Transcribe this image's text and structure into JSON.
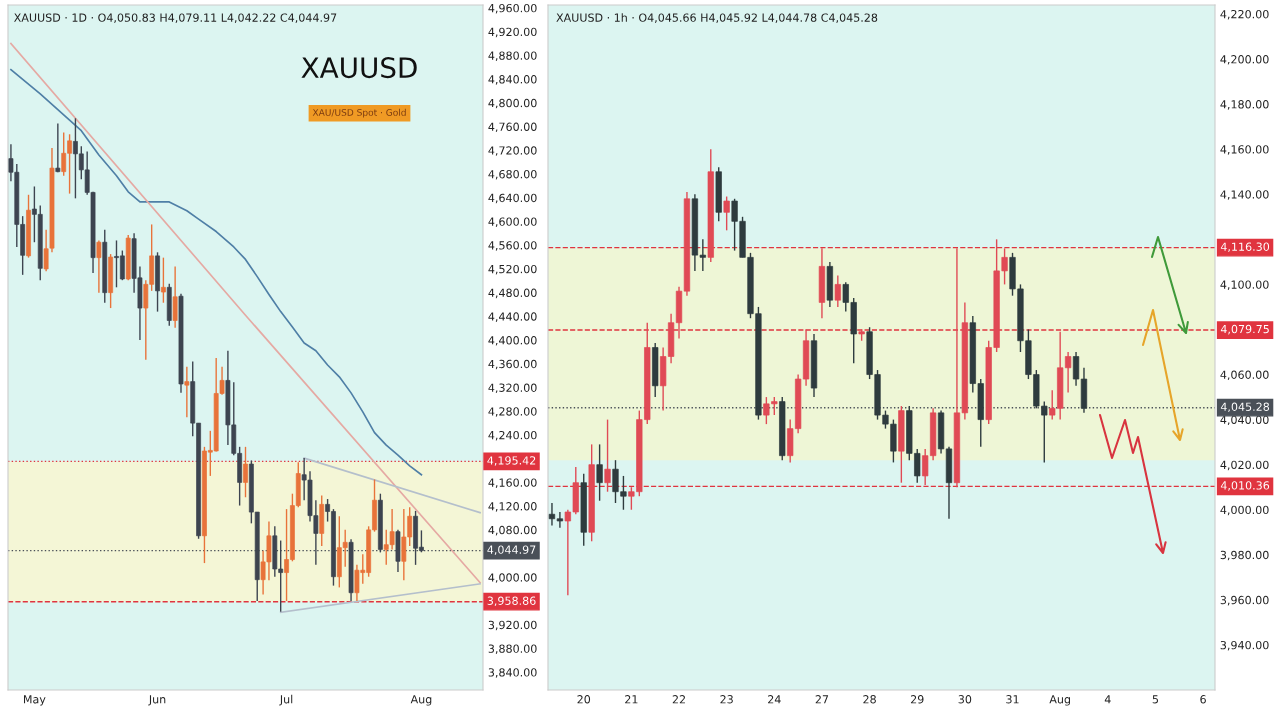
{
  "chart_data": [
    {
      "type": "candlestick",
      "title": "XAUUSD · 1D · O4,050.83 H4,079.11 L4,042.22 C4,044.97",
      "annotations": [
        "XAUUSD",
        "XAU/USD Spot · Gold"
      ],
      "categories": [
        null,
        null,
        null,
        null,
        "May",
        null,
        null,
        null,
        null,
        null,
        null,
        null,
        null,
        null,
        null,
        null,
        null,
        null,
        null,
        null,
        null,
        null,
        null,
        null,
        null,
        "Jun",
        null,
        null,
        null,
        null,
        null,
        null,
        null,
        null,
        null,
        null,
        null,
        null,
        null,
        null,
        null,
        null,
        null,
        null,
        null,
        null,
        null,
        "Jul",
        null,
        null,
        null,
        null,
        null,
        null,
        null,
        null,
        null,
        null,
        null,
        null,
        null,
        null,
        null,
        null,
        null,
        null,
        null,
        null,
        null,
        null,
        "Aug",
        null,
        null,
        null,
        null,
        null,
        null,
        null,
        null,
        null,
        null
      ],
      "ylim": [
        3810,
        4965
      ],
      "yticks": [
        {
          "value": 3840,
          "label": "3,840.00"
        },
        {
          "value": 3880,
          "label": "3,880.00"
        },
        {
          "value": 3920,
          "label": "3,920.00"
        },
        {
          "value": 4000,
          "label": "4,000.00"
        },
        {
          "value": 4080,
          "label": "4,080.00"
        },
        {
          "value": 4120,
          "label": "4,120.00"
        },
        {
          "value": 4160,
          "label": "4,160.00"
        },
        {
          "value": 4240,
          "label": "4,240.00"
        },
        {
          "value": 4280,
          "label": "4,280.00"
        },
        {
          "value": 4320,
          "label": "4,320.00"
        },
        {
          "value": 4360,
          "label": "4,360.00"
        },
        {
          "value": 4400,
          "label": "4,400.00"
        },
        {
          "value": 4440,
          "label": "4,440.00"
        },
        {
          "value": 4480,
          "label": "4,480.00"
        },
        {
          "value": 4520,
          "label": "4,520.00"
        },
        {
          "value": 4560,
          "label": "4,560.00"
        },
        {
          "value": 4600,
          "label": "4,600.00"
        },
        {
          "value": 4640,
          "label": "4,640.00"
        },
        {
          "value": 4680,
          "label": "4,680.00"
        },
        {
          "value": 4720,
          "label": "4,720.00"
        },
        {
          "value": 4760,
          "label": "4,760.00"
        },
        {
          "value": 4800,
          "label": "4,800.00"
        },
        {
          "value": 4840,
          "label": "4,840.00"
        },
        {
          "value": 4880,
          "label": "4,880.00"
        },
        {
          "value": 4920,
          "label": "4,920.00"
        },
        {
          "value": 4960,
          "label": "4,960.00"
        }
      ],
      "series": [
        {
          "ohlc": [
            [
              4706,
              4730,
              4668,
              4683
            ],
            [
              4683,
              4697,
              4557,
              4595
            ],
            [
              4595,
              4609,
              4510,
              4543
            ],
            [
              4542,
              4645,
              4539,
              4619
            ],
            [
              4621,
              4659,
              4565,
              4612
            ],
            [
              4612,
              4627,
              4501,
              4521
            ],
            [
              4520,
              4586,
              4516,
              4554
            ],
            [
              4555,
              4724,
              4548,
              4690
            ],
            [
              4690,
              4765,
              4683,
              4684
            ],
            [
              4684,
              4750,
              4677,
              4715
            ],
            [
              4715,
              4747,
              4647,
              4736
            ],
            [
              4735,
              4774,
              4639,
              4714
            ],
            [
              4714,
              4727,
              4671,
              4687
            ],
            [
              4687,
              4718,
              4645,
              4649
            ],
            [
              4649,
              4650,
              4513,
              4539
            ],
            [
              4539,
              4568,
              4480,
              4565
            ],
            [
              4565,
              4586,
              4463,
              4480
            ],
            [
              4480,
              4545,
              4454,
              4540
            ],
            [
              4541,
              4568,
              4489,
              4539
            ],
            [
              4542,
              4551,
              4501,
              4503
            ],
            [
              4503,
              4577,
              4501,
              4572
            ],
            [
              4571,
              4580,
              4480,
              4504
            ],
            [
              4505,
              4524,
              4400,
              4454
            ],
            [
              4454,
              4501,
              4367,
              4494
            ],
            [
              4494,
              4595,
              4483,
              4542
            ],
            [
              4542,
              4548,
              4448,
              4483
            ],
            [
              4481,
              4539,
              4463,
              4489
            ],
            [
              4489,
              4495,
              4424,
              4433
            ],
            [
              4433,
              4524,
              4421,
              4473
            ],
            [
              4474,
              4478,
              4311,
              4326
            ],
            [
              4324,
              4355,
              4270,
              4330
            ],
            [
              4330,
              4364,
              4238,
              4260
            ],
            [
              4260,
              4260,
              4065,
              4070
            ],
            [
              4070,
              4220,
              4024,
              4213
            ],
            [
              4211,
              4247,
              4171,
              4214
            ],
            [
              4213,
              4370,
              4212,
              4310
            ],
            [
              4310,
              4355,
              4308,
              4332
            ],
            [
              4332,
              4382,
              4223,
              4257
            ],
            [
              4257,
              4329,
              4206,
              4209
            ],
            [
              4209,
              4220,
              4121,
              4160
            ],
            [
              4160,
              4220,
              4135,
              4191
            ],
            [
              4191,
              4197,
              4091,
              4110
            ],
            [
              4110,
              4110,
              3960,
              3996
            ],
            [
              3996,
              4045,
              3971,
              4026
            ],
            [
              4026,
              4094,
              3995,
              4070
            ],
            [
              4070,
              4086,
              4001,
              4014
            ],
            [
              4014,
              4062,
              3942,
              4008
            ],
            [
              4008,
              4115,
              3960,
              4030
            ],
            [
              4030,
              4141,
              4027,
              4121
            ],
            [
              4121,
              4194,
              4118,
              4175
            ],
            [
              4173,
              4201,
              4130,
              4164
            ],
            [
              4164,
              4179,
              4094,
              4104
            ],
            [
              4104,
              4130,
              4021,
              4074
            ],
            [
              4074,
              4138,
              4053,
              4123
            ],
            [
              4123,
              4132,
              4094,
              4111
            ],
            [
              4111,
              4115,
              3986,
              4001
            ],
            [
              4001,
              4103,
              3983,
              4050
            ],
            [
              4050,
              4080,
              4018,
              4059
            ],
            [
              4059,
              4064,
              3960,
              3974
            ],
            [
              3974,
              4021,
              3960,
              4012
            ],
            [
              4008,
              4039,
              3989,
              4012
            ],
            [
              4008,
              4086,
              4001,
              4080
            ],
            [
              4080,
              4165,
              4077,
              4130
            ],
            [
              4130,
              4141,
              4042,
              4047
            ],
            [
              4047,
              4080,
              4021,
              4055
            ],
            [
              4055,
              4115,
              4047,
              4077
            ],
            [
              4077,
              4080,
              4009,
              4027
            ],
            [
              4027,
              4115,
              3995,
              4068
            ],
            [
              4068,
              4118,
              4053,
              4103
            ],
            [
              4103,
              4112,
              4021,
              4049
            ],
            [
              4050.83,
              4079.11,
              4042.22,
              4044.97
            ],
            null,
            null,
            null,
            null,
            null,
            null,
            null,
            null,
            null,
            null
          ],
          "colors": [
            "#3d4450",
            "#3d4450",
            "#3d4450",
            "#e8733a",
            "#3d4450",
            "#3d4450",
            "#e8733a",
            "#e8733a",
            "#3d4450",
            "#e8733a",
            "#e8733a",
            "#3d4450",
            "#3d4450",
            "#3d4450",
            "#3d4450",
            "#e8733a",
            "#3d4450",
            "#e8733a",
            "#3d4450",
            "#3d4450",
            "#e8733a",
            "#3d4450",
            "#3d4450",
            "#e8733a",
            "#e8733a",
            "#3d4450",
            "#e8733a",
            "#3d4450",
            "#e8733a",
            "#3d4450",
            "#e8733a",
            "#3d4450",
            "#3d4450",
            "#e8733a",
            "#e8733a",
            "#e8733a",
            "#e8733a",
            "#3d4450",
            "#3d4450",
            "#3d4450",
            "#e8733a",
            "#3d4450",
            "#3d4450",
            "#e8733a",
            "#e8733a",
            "#3d4450",
            "#3d4450",
            "#e8733a",
            "#e8733a",
            "#e8733a",
            "#3d4450",
            "#3d4450",
            "#3d4450",
            "#e8733a",
            "#3d4450",
            "#3d4450",
            "#e8733a",
            "#e8733a",
            "#3d4450",
            "#e8733a",
            "#e8733a",
            "#e8733a",
            "#e8733a",
            "#3d4450",
            "#e8733a",
            "#e8733a",
            "#3d4450",
            "#e8733a",
            "#e8733a",
            "#3d4450",
            "#3d4450",
            null,
            null,
            null,
            null,
            null,
            null,
            null,
            null,
            null,
            null
          ]
        },
        {
          "type": "line",
          "color": "#4f7fa6",
          "values": [
            4856,
            null,
            null,
            null,
            null,
            4815,
            null,
            null,
            null,
            null,
            4771,
            null,
            4753,
            null,
            null,
            4712,
            null,
            null,
            4677,
            null,
            4650,
            null,
            4633,
            null,
            null,
            4633,
            null,
            4633,
            null,
            null,
            4618,
            null,
            4604,
            null,
            null,
            4583,
            null,
            null,
            4557,
            null,
            4536,
            null,
            4507,
            null,
            4477,
            null,
            4448,
            null,
            4422,
            null,
            4395,
            null,
            4382,
            null,
            4358,
            null,
            4338,
            null,
            4311,
            null,
            4279,
            null,
            4244,
            null,
            4223,
            null,
            4206,
            null,
            4188,
            null,
            4173,
            null,
            null,
            null,
            null,
            null,
            null,
            null,
            null,
            null,
            null
          ]
        },
        {
          "type": "line",
          "color": "#e5a9a3",
          "values": [
            4900,
            null,
            null,
            null,
            null,
            null,
            null,
            null,
            null,
            null,
            null,
            null,
            null,
            null,
            null,
            null,
            null,
            null,
            null,
            null,
            null,
            null,
            null,
            null,
            null,
            null,
            null,
            null,
            null,
            null,
            null,
            null,
            null,
            null,
            null,
            null,
            null,
            null,
            null,
            null,
            4442,
            null,
            null,
            null,
            null,
            null,
            null,
            null,
            null,
            null,
            null,
            null,
            null,
            null,
            null,
            null,
            null,
            null,
            null,
            null,
            null,
            null,
            null,
            null,
            null,
            null,
            null,
            null,
            null,
            null,
            null,
            null,
            null,
            null,
            null,
            null,
            null,
            null,
            null,
            null,
            3991
          ]
        },
        {
          "type": "line",
          "color": "#b4bfcc",
          "values": [
            null,
            null,
            null,
            null,
            null,
            null,
            null,
            null,
            null,
            null,
            null,
            null,
            null,
            null,
            null,
            null,
            null,
            null,
            null,
            null,
            null,
            null,
            null,
            null,
            null,
            null,
            null,
            null,
            null,
            null,
            null,
            null,
            null,
            null,
            null,
            null,
            null,
            null,
            null,
            null,
            null,
            null,
            null,
            null,
            null,
            null,
            null,
            null,
            null,
            null,
            4201,
            null,
            null,
            null,
            null,
            null,
            null,
            null,
            null,
            null,
            null,
            null,
            null,
            null,
            null,
            null,
            null,
            null,
            null,
            null,
            null,
            null,
            null,
            null,
            null,
            null,
            null,
            null,
            null,
            null,
            4109
          ]
        },
        {
          "type": "line",
          "color": "#b4bfcc",
          "values": [
            null,
            null,
            null,
            null,
            null,
            null,
            null,
            null,
            null,
            null,
            null,
            null,
            null,
            null,
            null,
            null,
            null,
            null,
            null,
            null,
            null,
            null,
            null,
            null,
            null,
            null,
            null,
            null,
            null,
            null,
            null,
            null,
            null,
            null,
            null,
            null,
            null,
            null,
            null,
            null,
            null,
            null,
            null,
            null,
            null,
            null,
            3941,
            null,
            null,
            null,
            null,
            null,
            null,
            null,
            null,
            null,
            null,
            null,
            null,
            null,
            null,
            null,
            null,
            null,
            null,
            null,
            null,
            null,
            null,
            null,
            null,
            null,
            null,
            null,
            null,
            null,
            null,
            null,
            null,
            null,
            3989
          ]
        }
      ],
      "bands": [
        {
          "axis": "y",
          "from": 3958.86,
          "to": 4195.42,
          "color": "#f4f6d6"
        }
      ],
      "ref_lines": [
        {
          "axis": "y",
          "value": 4195.42,
          "label": "4,195.42",
          "color": "#e0343f",
          "line_style": "dotted"
        },
        {
          "axis": "y",
          "value": 4044.97,
          "label": "4,044.97",
          "color": "#4a5058",
          "line_style": "dotted"
        },
        {
          "axis": "y",
          "value": 3958.86,
          "label": "3,958.86",
          "color": "#e0343f",
          "line_style": "dashed"
        }
      ],
      "grid": false
    },
    {
      "type": "candlestick",
      "title": "XAUUSD · 1h · O4,045.66 H4,045.92 L4,044.78 C4,045.28",
      "categories": [
        null,
        null,
        null,
        null,
        "20",
        null,
        null,
        null,
        null,
        null,
        "21",
        null,
        null,
        null,
        null,
        null,
        "22",
        null,
        null,
        null,
        null,
        null,
        "23",
        null,
        null,
        null,
        null,
        null,
        "24",
        null,
        null,
        null,
        null,
        null,
        "27",
        null,
        null,
        null,
        null,
        null,
        "28",
        null,
        null,
        null,
        null,
        null,
        "29",
        null,
        null,
        null,
        null,
        null,
        "30",
        null,
        null,
        null,
        null,
        null,
        "31",
        null,
        null,
        null,
        null,
        null,
        "Aug",
        null,
        null,
        null,
        null,
        null,
        "4",
        null,
        null,
        null,
        null,
        null,
        "5",
        null,
        null,
        null,
        null,
        null,
        "6",
        null
      ],
      "ylim": [
        3920,
        4224
      ],
      "yticks": [
        {
          "value": 3940,
          "label": "3,940.00"
        },
        {
          "value": 3960,
          "label": "3,960.00"
        },
        {
          "value": 3980,
          "label": "3,980.00"
        },
        {
          "value": 4000,
          "label": "4,000.00"
        },
        {
          "value": 4020,
          "label": "4,020.00"
        },
        {
          "value": 4040,
          "label": "4,040.00"
        },
        {
          "value": 4060,
          "label": "4,060.00"
        },
        {
          "value": 4100,
          "label": "4,100.00"
        },
        {
          "value": 4140,
          "label": "4,140.00"
        },
        {
          "value": 4160,
          "label": "4,160.00"
        },
        {
          "value": 4180,
          "label": "4,180.00"
        },
        {
          "value": 4200,
          "label": "4,200.00"
        },
        {
          "value": 4220,
          "label": "4,220.00"
        }
      ],
      "series": [
        {
          "ohlc": [
            [
              3998,
              4003,
              3993,
              3996
            ],
            [
              3996,
              3999,
              3992,
              3995
            ],
            [
              3995,
              4000,
              3962,
              3999
            ],
            [
              3999,
              4019,
              3998,
              4012
            ],
            [
              4012,
              4016,
              3984,
              3990
            ],
            [
              3990,
              4029,
              3986,
              4020
            ],
            [
              4020,
              4029,
              4004,
              4012
            ],
            [
              4012,
              4040,
              4008,
              4018
            ],
            [
              4018,
              4022,
              4003,
              4008
            ],
            [
              4008,
              4015,
              4000,
              4006
            ],
            [
              4006,
              4010,
              4000,
              4008
            ],
            [
              4008,
              4044,
              4006,
              4040
            ],
            [
              4040,
              4083,
              4038,
              4072
            ],
            [
              4072,
              4074,
              4050,
              4055
            ],
            [
              4055,
              4072,
              4044,
              4068
            ],
            [
              4068,
              4087,
              4065,
              4083
            ],
            [
              4083,
              4099,
              4076,
              4097
            ],
            [
              4097,
              4141,
              4095,
              4138
            ],
            [
              4138,
              4140,
              4106,
              4113
            ],
            [
              4113,
              4120,
              4106,
              4112
            ],
            [
              4112,
              4160,
              4110,
              4150
            ],
            [
              4150,
              4152,
              4128,
              4132
            ],
            [
              4132,
              4139,
              4124,
              4137
            ],
            [
              4137,
              4138,
              4115,
              4128
            ],
            [
              4128,
              4130,
              4112,
              4112
            ],
            [
              4112,
              4114,
              4085,
              4087
            ],
            [
              4087,
              4090,
              4040,
              4042
            ],
            [
              4042,
              4050,
              4038,
              4047
            ],
            [
              4047,
              4050,
              4042,
              4048
            ],
            [
              4048,
              4050,
              4022,
              4024
            ],
            [
              4024,
              4040,
              4021,
              4036
            ],
            [
              4036,
              4060,
              4034,
              4058
            ],
            [
              4058,
              4080,
              4055,
              4075
            ],
            [
              4075,
              4078,
              4050,
              4054
            ],
            [
              4092,
              4116,
              4085,
              4108
            ],
            [
              4108,
              4110,
              4090,
              4093
            ],
            [
              4093,
              4104,
              4090,
              4100
            ],
            [
              4100,
              4101,
              4088,
              4092
            ],
            [
              4092,
              4094,
              4065,
              4078
            ],
            [
              4078,
              4080,
              4075,
              4079
            ],
            [
              4079,
              4081,
              4058,
              4060
            ],
            [
              4060,
              4062,
              4040,
              4042
            ],
            [
              4042,
              4044,
              4036,
              4038
            ],
            [
              4038,
              4040,
              4021,
              4026
            ],
            [
              4026,
              4046,
              4012,
              4044
            ],
            [
              4044,
              4046,
              4022,
              4025
            ],
            [
              4025,
              4027,
              4012,
              4015
            ],
            [
              4015,
              4027,
              4011,
              4024
            ],
            [
              4024,
              4045,
              4022,
              4043
            ],
            [
              4043,
              4044,
              4025,
              4027
            ],
            [
              4027,
              4028,
              3996,
              4012
            ],
            [
              4012,
              4116,
              4010,
              4043
            ],
            [
              4043,
              4092,
              4040,
              4083
            ],
            [
              4083,
              4086,
              4052,
              4056
            ],
            [
              4056,
              4058,
              4028,
              4040
            ],
            [
              4040,
              4075,
              4038,
              4072
            ],
            [
              4072,
              4120,
              4070,
              4106
            ],
            [
              4106,
              4116,
              4100,
              4112
            ],
            [
              4112,
              4114,
              4095,
              4098
            ],
            [
              4098,
              4100,
              4070,
              4075
            ],
            [
              4075,
              4080,
              4058,
              4060
            ],
            [
              4060,
              4062,
              4045,
              4046
            ],
            [
              4046,
              4048,
              4021,
              4042
            ],
            [
              4042,
              4053,
              4040,
              4045
            ],
            [
              4045,
              4079,
              4040,
              4063
            ],
            [
              4063,
              4070,
              4052,
              4068
            ],
            [
              4068,
              4070,
              4055,
              4058
            ],
            [
              4058,
              4063,
              4043,
              4045
            ],
            null,
            null,
            null,
            null,
            null,
            null,
            null,
            null,
            null,
            null,
            null,
            null,
            null,
            null,
            null,
            null
          ],
          "colors": [
            "#2e3b3e",
            "#2e3b3e",
            "#e04a55",
            "#e04a55",
            "#2e3b3e",
            "#e04a55",
            "#2e3b3e",
            "#e04a55",
            "#2e3b3e",
            "#2e3b3e",
            "#e04a55",
            "#e04a55",
            "#e04a55",
            "#2e3b3e",
            "#e04a55",
            "#e04a55",
            "#e04a55",
            "#e04a55",
            "#2e3b3e",
            "#2e3b3e",
            "#e04a55",
            "#2e3b3e",
            "#e04a55",
            "#2e3b3e",
            "#2e3b3e",
            "#2e3b3e",
            "#2e3b3e",
            "#e04a55",
            "#e04a55",
            "#2e3b3e",
            "#e04a55",
            "#e04a55",
            "#e04a55",
            "#2e3b3e",
            "#e04a55",
            "#2e3b3e",
            "#e04a55",
            "#2e3b3e",
            "#2e3b3e",
            "#e04a55",
            "#2e3b3e",
            "#2e3b3e",
            "#2e3b3e",
            "#2e3b3e",
            "#e04a55",
            "#2e3b3e",
            "#2e3b3e",
            "#e04a55",
            "#e04a55",
            "#2e3b3e",
            "#2e3b3e",
            "#e04a55",
            "#e04a55",
            "#2e3b3e",
            "#2e3b3e",
            "#e04a55",
            "#e04a55",
            "#e04a55",
            "#2e3b3e",
            "#2e3b3e",
            "#2e3b3e",
            "#2e3b3e",
            "#2e3b3e",
            "#e04a55",
            "#e04a55",
            "#e04a55",
            "#2e3b3e",
            "#2e3b3e",
            null,
            null,
            null,
            null,
            null,
            null,
            null,
            null,
            null,
            null,
            null,
            null,
            null,
            null,
            null,
            null
          ]
        }
      ],
      "bands": [
        {
          "axis": "y",
          "from": 4022,
          "to": 4116,
          "color": "#eef6d6"
        }
      ],
      "ref_lines": [
        {
          "axis": "y",
          "value": 4116.3,
          "label": "4,116.30",
          "color": "#e0343f",
          "line_style": "dashed"
        },
        {
          "axis": "y",
          "value": 4079.75,
          "label": "4,079.75",
          "color": "#e0343f",
          "line_style": "dashed"
        },
        {
          "axis": "y",
          "value": 4045.28,
          "label": "4,045.28",
          "color": "#4a5058",
          "line_style": "dotted"
        },
        {
          "axis": "y",
          "value": 4010.36,
          "label": "4,010.36",
          "color": "#e0343f",
          "line_style": "dashed"
        }
      ],
      "grid": false
    }
  ]
}
